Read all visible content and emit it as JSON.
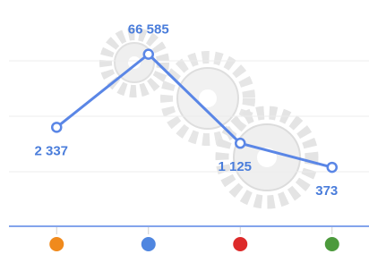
{
  "chart_data": {
    "type": "line",
    "log_scale": true,
    "categories": [
      null,
      null,
      null,
      null
    ],
    "category_colors": [
      "#f08a1c",
      "#4f86e0",
      "#dd2a2a",
      "#4c9a3c"
    ],
    "values": [
      2337,
      66585,
      1125,
      373
    ],
    "value_labels": [
      "2 337",
      "66 585",
      "1 125",
      "373"
    ],
    "color": "#5a86e6",
    "ylim": [
      25,
      800000
    ]
  }
}
